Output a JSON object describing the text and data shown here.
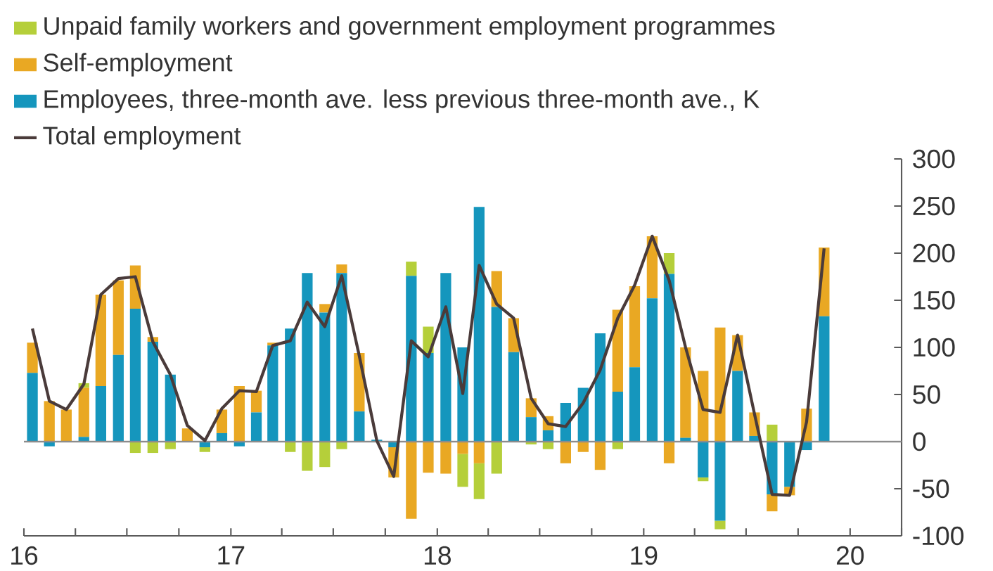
{
  "chart_data": {
    "type": "bar",
    "stacked": true,
    "legend": "top left",
    "x": [
      "2016-01-16",
      "2016-02-15",
      "2016-03-16",
      "2016-04-16",
      "2016-05-16",
      "2016-06-16",
      "2016-07-16",
      "2016-08-16",
      "2016-09-16",
      "2016-10-16",
      "2016-11-16",
      "2016-12-16",
      "2017-01-16",
      "2017-02-15",
      "2017-03-16",
      "2017-04-16",
      "2017-05-16",
      "2017-06-16",
      "2017-07-16",
      "2017-08-16",
      "2017-09-16",
      "2017-10-16",
      "2017-11-16",
      "2017-12-16",
      "2018-01-16",
      "2018-02-15",
      "2018-03-16",
      "2018-04-16",
      "2018-05-16",
      "2018-06-16",
      "2018-07-16",
      "2018-08-16",
      "2018-09-16",
      "2018-10-16",
      "2018-11-16",
      "2018-12-16",
      "2019-01-16",
      "2019-02-15",
      "2019-03-16",
      "2019-04-16",
      "2019-05-16",
      "2019-06-16",
      "2019-07-16",
      "2019-08-16",
      "2019-09-16",
      "2019-10-16",
      "2019-11-16"
    ],
    "xlim": [
      "2016-01",
      "2020-04"
    ],
    "xticks": [
      {
        "value": "2016-01",
        "label": "16"
      },
      {
        "value": "2016-04",
        "label": null
      },
      {
        "value": "2016-07",
        "label": null
      },
      {
        "value": "2016-10",
        "label": null
      },
      {
        "value": "2017-01",
        "label": "17"
      },
      {
        "value": "2017-04",
        "label": null
      },
      {
        "value": "2017-07",
        "label": null
      },
      {
        "value": "2017-10",
        "label": null
      },
      {
        "value": "2018-01",
        "label": "18"
      },
      {
        "value": "2018-04",
        "label": null
      },
      {
        "value": "2018-07",
        "label": null
      },
      {
        "value": "2018-10",
        "label": null
      },
      {
        "value": "2019-01",
        "label": "19"
      },
      {
        "value": "2019-04",
        "label": null
      },
      {
        "value": "2019-07",
        "label": null
      },
      {
        "value": "2019-10",
        "label": null
      },
      {
        "value": "2020-01",
        "label": "20"
      },
      {
        "value": "2020-04",
        "label": null
      }
    ],
    "ylim": [
      -100,
      300
    ],
    "yticks": [
      -100,
      -50,
      0,
      50,
      100,
      150,
      200,
      250,
      300
    ],
    "ref_lines": [
      {
        "axis": "y",
        "value": 0,
        "color": "#8c8c8c"
      }
    ],
    "series": [
      {
        "name": "Employees, three-month ave. less previous three-month ave., K",
        "color": "#1596bd",
        "values": [
          73,
          -5,
          0,
          5,
          59,
          92,
          141,
          106,
          71,
          0,
          -6,
          9,
          -5,
          31,
          102,
          120,
          179,
          137,
          179,
          32,
          2,
          -6,
          176,
          94,
          179,
          100,
          249,
          143,
          95,
          26,
          12,
          41,
          57,
          115,
          53,
          79,
          152,
          178,
          4,
          -38,
          -84,
          75,
          6,
          -56,
          -48,
          -9,
          133
        ]
      },
      {
        "name": "Self-employment",
        "color": "#e9a823",
        "values": [
          32,
          43,
          34,
          52,
          97,
          79,
          46,
          5,
          0,
          14,
          null,
          25,
          59,
          23,
          3,
          0,
          0,
          9,
          9,
          62,
          0,
          -32,
          -82,
          -33,
          -34,
          -13,
          -23,
          38,
          36,
          20,
          15,
          -23,
          -11,
          -30,
          87,
          86,
          66,
          -23,
          96,
          75,
          121,
          38,
          25,
          -18,
          -9,
          35,
          73
        ]
      },
      {
        "name": "Unpaid family workers and government employment programmes",
        "color": "#b5cf3a",
        "values": [
          0,
          0,
          0,
          5,
          0,
          0,
          -12,
          -12,
          -8,
          0,
          -5,
          0,
          0,
          0,
          0,
          -11,
          -31,
          -27,
          -8,
          0,
          0,
          0,
          15,
          28,
          0,
          -35,
          -38,
          -34,
          0,
          -3,
          -8,
          0,
          0,
          0,
          -8,
          0,
          0,
          22,
          0,
          -4,
          -9,
          0,
          0,
          18,
          0,
          0,
          0
        ]
      },
      {
        "name": "Total employment",
        "type": "line",
        "color": "#4a3b3a",
        "values": [
          120,
          43,
          34,
          61,
          156,
          173,
          175,
          106,
          71,
          17,
          1,
          35,
          54,
          53,
          102,
          107,
          148,
          122,
          176,
          91,
          1,
          -37,
          107,
          90,
          143,
          51,
          187,
          146,
          131,
          46,
          19,
          16,
          41,
          76,
          131,
          166,
          218,
          171,
          100,
          34,
          31,
          113,
          29,
          -56,
          -57,
          21,
          205
        ]
      }
    ]
  }
}
